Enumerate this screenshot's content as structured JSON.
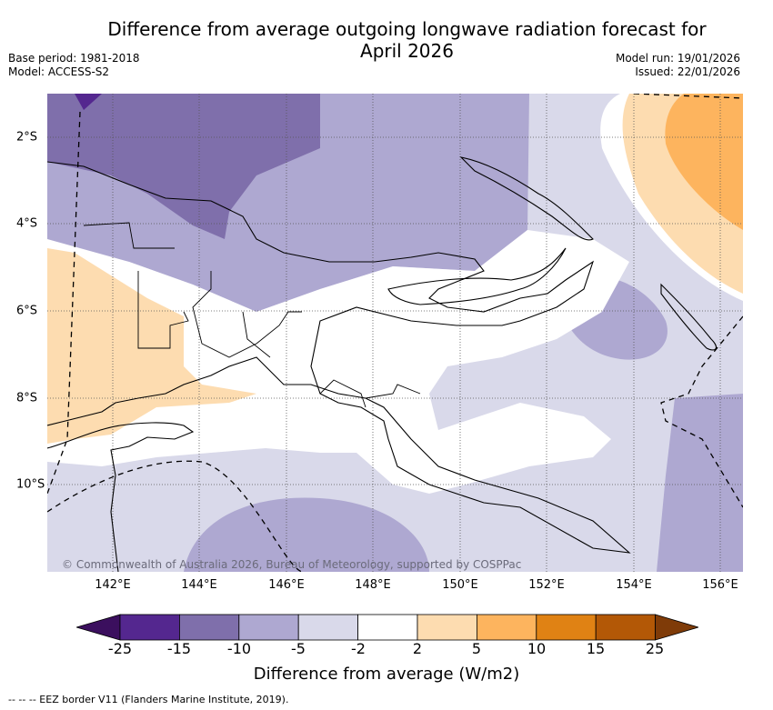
{
  "title": "Difference from average outgoing longwave radiation forecast for April 2026",
  "title_line1": "Difference from average outgoing longwave radiation forecast for",
  "title_line2": "April 2026",
  "base_period": "Base period: 1981-2018",
  "model": "Model: ACCESS-S2",
  "model_run": "Model run: 19/01/2026",
  "issued": "Issued: 22/01/2026",
  "map": {
    "region": "Papua New Guinea",
    "lon_labels": [
      "142°E",
      "144°E",
      "146°E",
      "148°E",
      "150°E",
      "152°E",
      "154°E",
      "156°E"
    ],
    "lat_labels": [
      "2°S",
      "4°S",
      "6°S",
      "8°S",
      "10°S"
    ],
    "copyright": "© Commonwealth of Australia 2026, Bureau of Meteorology, supported by COSPPac"
  },
  "colorbar": {
    "title": "Difference from average (W/m2)",
    "labels": [
      "-25",
      "-15",
      "-10",
      "-5",
      "-2",
      "2",
      "5",
      "10",
      "15",
      "25"
    ],
    "colors": [
      "#3b0f5e",
      "#54278f",
      "#7f6fab",
      "#aea8d1",
      "#d9d9ea",
      "#ffffff",
      "#fddcb0",
      "#fdb45e",
      "#e08214",
      "#b35806",
      "#7f3b08"
    ]
  },
  "footnote": "-- -- -- EEZ border V11 (Flanders Marine Institute, 2019)."
}
